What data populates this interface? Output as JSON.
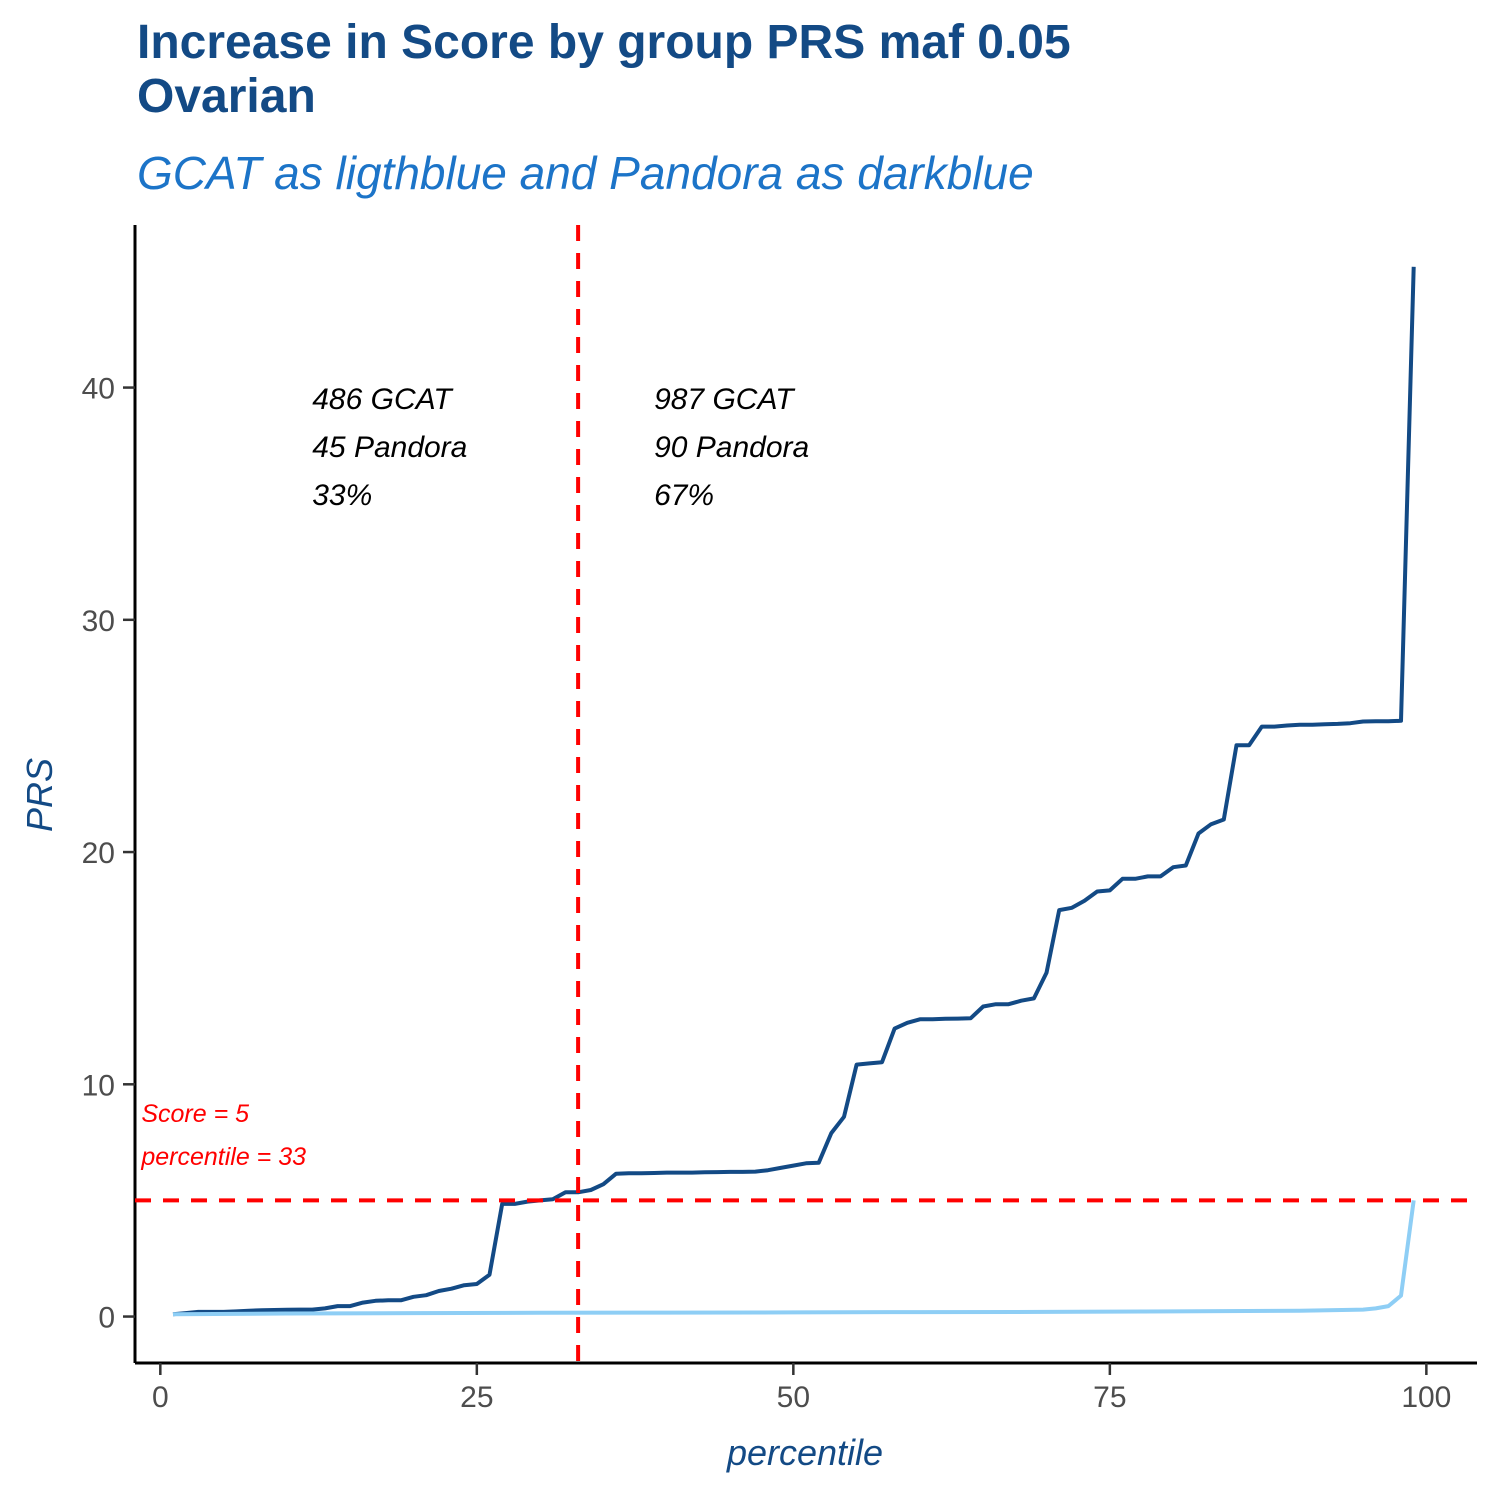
{
  "chart_data": {
    "type": "line",
    "title": "Increase in Score by group PRS maf 0.05\nOvarian",
    "subtitle": "GCAT as ligthblue and Pandora as darkblue",
    "xlabel": "percentile",
    "ylabel": "PRS",
    "xlim": [
      -2,
      104
    ],
    "ylim": [
      -2,
      47
    ],
    "x_ticks": [
      0,
      25,
      50,
      75,
      100
    ],
    "y_ticks": [
      0,
      10,
      20,
      30,
      40
    ],
    "grid": false,
    "legend": "none",
    "series": [
      {
        "color": "#134a85",
        "x": [
          1,
          2,
          3,
          4,
          5,
          6,
          7,
          8,
          9,
          10,
          11,
          12,
          13,
          14,
          15,
          16,
          17,
          18,
          19,
          20,
          21,
          22,
          23,
          24,
          25,
          26,
          27,
          28,
          29,
          30,
          31,
          32,
          33,
          34,
          35,
          36,
          37,
          38,
          39,
          40,
          41,
          42,
          43,
          44,
          45,
          46,
          47,
          48,
          49,
          50,
          51,
          52,
          53,
          54,
          55,
          56,
          57,
          58,
          59,
          60,
          61,
          62,
          63,
          64,
          65,
          66,
          67,
          68,
          69,
          70,
          71,
          72,
          73,
          74,
          75,
          76,
          77,
          78,
          79,
          80,
          81,
          82,
          83,
          84,
          85,
          86,
          87,
          88,
          89,
          90,
          91,
          92,
          93,
          94,
          95,
          96,
          97,
          98,
          99
        ],
        "values": [
          0.1,
          0.15,
          0.2,
          0.2,
          0.2,
          0.22,
          0.25,
          0.27,
          0.28,
          0.29,
          0.3,
          0.3,
          0.35,
          0.45,
          0.45,
          0.6,
          0.68,
          0.7,
          0.7,
          0.85,
          0.92,
          1.1,
          1.2,
          1.35,
          1.4,
          1.8,
          4.85,
          4.85,
          4.95,
          5.0,
          5.05,
          5.35,
          5.35,
          5.45,
          5.7,
          6.15,
          6.17,
          6.17,
          6.18,
          6.2,
          6.2,
          6.2,
          6.21,
          6.22,
          6.23,
          6.23,
          6.24,
          6.3,
          6.4,
          6.5,
          6.6,
          6.62,
          7.9,
          8.6,
          10.85,
          10.9,
          10.95,
          12.4,
          12.65,
          12.8,
          12.8,
          12.82,
          12.83,
          12.84,
          13.35,
          13.45,
          13.45,
          13.6,
          13.7,
          14.8,
          17.5,
          17.6,
          17.9,
          18.3,
          18.35,
          18.85,
          18.85,
          18.95,
          18.95,
          19.35,
          19.42,
          20.8,
          21.2,
          21.4,
          24.6,
          24.6,
          25.4,
          25.4,
          25.45,
          25.48,
          25.48,
          25.5,
          25.52,
          25.55,
          25.62,
          25.63,
          25.63,
          25.65,
          45.2
        ]
      },
      {
        "color": "#8ecef5",
        "x": [
          1,
          10,
          20,
          30,
          40,
          50,
          60,
          70,
          80,
          90,
          95,
          96,
          97,
          98,
          99
        ],
        "values": [
          0.1,
          0.13,
          0.15,
          0.16,
          0.17,
          0.18,
          0.19,
          0.2,
          0.22,
          0.25,
          0.3,
          0.35,
          0.45,
          0.9,
          5.0
        ]
      }
    ],
    "reference_lines": [
      {
        "orientation": "vertical",
        "x": 33,
        "color": "#ff0000",
        "style": "dashed"
      },
      {
        "orientation": "horizontal",
        "y": 5,
        "color": "#ff0000",
        "style": "dashed"
      }
    ],
    "annotations": [
      {
        "lines": [
          "486 GCAT",
          "45 Pandora",
          "33%"
        ],
        "x": 12,
        "y": 39.5,
        "color": "#000000"
      },
      {
        "lines": [
          "987 GCAT",
          "90 Pandora",
          "67%"
        ],
        "x": 39,
        "y": 39.5,
        "color": "#000000"
      },
      {
        "lines": [
          "Score = 5",
          "percentile = 33"
        ],
        "x": -1.5,
        "y": 8.8,
        "color": "#ff0000"
      }
    ]
  }
}
